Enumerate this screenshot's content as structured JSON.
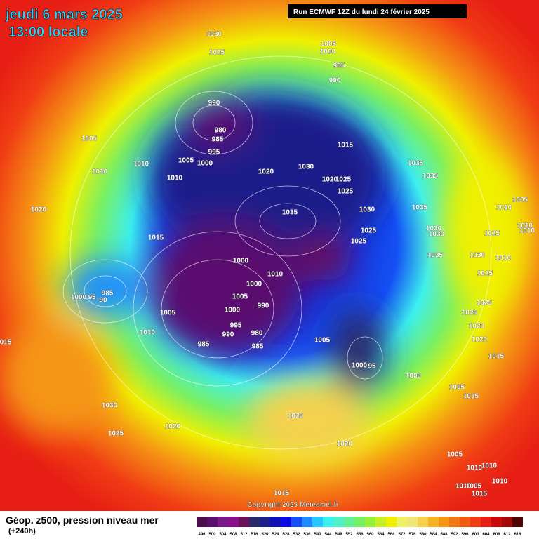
{
  "header": {
    "date": "jeudi 6 mars 2025",
    "time": "13:00 locale",
    "run": "Run ECMWF 12Z du lundi 24 février 2025"
  },
  "footer": {
    "title": "Géop. z500, pression niveau mer",
    "lead": "(+240h)",
    "copyright": "Copyright 2025 Meteociel.fr"
  },
  "colorbar": {
    "labels": [
      496,
      500,
      504,
      508,
      512,
      516,
      520,
      524,
      528,
      532,
      536,
      540,
      544,
      548,
      552,
      556,
      560,
      564,
      568,
      572,
      576,
      580,
      584,
      588,
      592,
      596,
      600,
      604,
      608,
      612,
      616
    ],
    "colors": [
      "#4b0f4b",
      "#5a0f6e",
      "#7a1a8a",
      "#8a0f8a",
      "#6e0f5a",
      "#2a2a6a",
      "#1f1f8a",
      "#1010b4",
      "#0a0ae6",
      "#1450f5",
      "#1e8cff",
      "#28c8ff",
      "#3cf0f0",
      "#50f0c8",
      "#64f096",
      "#78f064",
      "#96f03c",
      "#c8f028",
      "#f0f000",
      "#f0f064",
      "#f0e678",
      "#f5d250",
      "#f5b428",
      "#f59614",
      "#f07814",
      "#f05a14",
      "#f03c14",
      "#e61e14",
      "#c80a0a",
      "#a00a0a",
      "#500505"
    ]
  },
  "isobar_labels": [
    1030,
    1025,
    1005,
    1000,
    985,
    990,
    990,
    980,
    985,
    995,
    1005,
    1000,
    1005,
    1010,
    1010,
    1010,
    1020,
    1030,
    1015,
    1020,
    1025,
    1025,
    1035,
    1035,
    1035,
    1030,
    1035,
    1020,
    1015,
    1025,
    1025,
    1030,
    1030,
    1035,
    1010,
    1005,
    1025,
    1010,
    1010,
    1000,
    1010,
    1030,
    1010,
    1025,
    985,
    1000,
    95,
    90,
    1000,
    1005,
    990,
    1000,
    1005,
    995,
    990,
    980,
    985,
    985,
    1010,
    1025,
    1025,
    1020,
    1020,
    1005,
    "015",
    1015,
    1000,
    95,
    1005,
    1005,
    1015,
    1030,
    1025,
    1020,
    1025,
    1020,
    1005,
    1010,
    1010,
    1010,
    1010,
    1005,
    1015,
    1015
  ]
}
